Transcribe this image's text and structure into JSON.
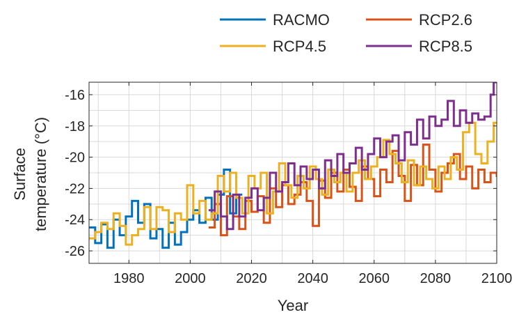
{
  "chart_data": {
    "type": "line",
    "step": true,
    "xlabel": "Year",
    "ylabel_lines": [
      "Surface",
      "temperature (°C)"
    ],
    "xlim": [
      1967,
      2100
    ],
    "ylim": [
      -26.8,
      -15.2
    ],
    "xticks": [
      1980,
      2000,
      2020,
      2040,
      2060,
      2080,
      2100
    ],
    "yticks": [
      -26,
      -24,
      -22,
      -20,
      -18,
      -16
    ],
    "grid": true,
    "legend": "top-right",
    "series": [
      {
        "name": "RACMO",
        "color": "#0072BD",
        "x": [
          1967,
          1969,
          1971,
          1973,
          1975,
          1977,
          1979,
          1981,
          1983,
          1985,
          1987,
          1989,
          1991,
          1993,
          1995,
          1997,
          1999,
          2001,
          2003,
          2005,
          2007,
          2009,
          2011,
          2013,
          2015
        ],
        "y": [
          -24.5,
          -25.5,
          -24.3,
          -25.8,
          -24.0,
          -25.0,
          -23.8,
          -22.8,
          -24.2,
          -23.0,
          -25.2,
          -24.6,
          -25.8,
          -24.2,
          -25.6,
          -24.8,
          -24.0,
          -23.4,
          -24.2,
          -22.6,
          -24.0,
          -22.4,
          -20.8,
          -23.6,
          -22.4
        ]
      },
      {
        "name": "RCP2.6",
        "color": "#D95319",
        "x": [
          2006,
          2008,
          2010,
          2012,
          2014,
          2016,
          2018,
          2020,
          2022,
          2024,
          2026,
          2028,
          2030,
          2032,
          2034,
          2036,
          2038,
          2040,
          2042,
          2044,
          2046,
          2048,
          2050,
          2052,
          2054,
          2056,
          2058,
          2060,
          2062,
          2064,
          2066,
          2068,
          2070,
          2072,
          2074,
          2076,
          2078,
          2080,
          2082,
          2084,
          2086,
          2088,
          2090,
          2092,
          2094,
          2096,
          2098,
          2100
        ],
        "y": [
          -24.5,
          -23.0,
          -25.0,
          -22.5,
          -23.8,
          -24.6,
          -22.8,
          -23.5,
          -22.5,
          -24.2,
          -22.0,
          -23.2,
          -21.8,
          -23.0,
          -22.4,
          -21.6,
          -22.8,
          -24.4,
          -21.5,
          -22.6,
          -21.0,
          -22.2,
          -20.8,
          -21.9,
          -22.8,
          -20.6,
          -21.4,
          -22.5,
          -20.8,
          -21.6,
          -19.6,
          -21.2,
          -22.8,
          -20.5,
          -21.8,
          -19.2,
          -20.8,
          -22.2,
          -21.0,
          -20.4,
          -19.8,
          -21.4,
          -20.6,
          -22.0,
          -20.8,
          -21.6,
          -21.0,
          -21.2
        ]
      },
      {
        "name": "RCP4.5",
        "color": "#EDB120",
        "x": [
          1967,
          1969,
          1971,
          1973,
          1975,
          1977,
          1979,
          1981,
          1983,
          1985,
          1987,
          1989,
          1991,
          1993,
          1995,
          1997,
          1999,
          2001,
          2003,
          2005,
          2007,
          2009,
          2011,
          2013,
          2015,
          2017,
          2019,
          2021,
          2023,
          2025,
          2027,
          2029,
          2031,
          2033,
          2035,
          2037,
          2039,
          2041,
          2043,
          2045,
          2047,
          2049,
          2051,
          2053,
          2055,
          2057,
          2059,
          2061,
          2063,
          2065,
          2067,
          2069,
          2071,
          2073,
          2075,
          2077,
          2079,
          2081,
          2083,
          2085,
          2087,
          2089,
          2091,
          2093,
          2095,
          2097,
          2099
        ],
        "y": [
          -25.2,
          -24.8,
          -24.2,
          -24.6,
          -23.6,
          -24.4,
          -25.6,
          -25.0,
          -24.6,
          -23.2,
          -24.6,
          -23.2,
          -23.4,
          -24.8,
          -23.6,
          -24.0,
          -21.8,
          -23.6,
          -22.8,
          -24.0,
          -23.6,
          -21.2,
          -22.2,
          -21.0,
          -22.6,
          -23.6,
          -21.2,
          -22.0,
          -21.0,
          -23.6,
          -22.2,
          -20.4,
          -21.8,
          -22.6,
          -21.2,
          -22.0,
          -20.6,
          -21.4,
          -22.4,
          -20.8,
          -21.6,
          -21.0,
          -22.2,
          -21.0,
          -20.2,
          -21.4,
          -20.6,
          -20.0,
          -18.9,
          -19.8,
          -20.4,
          -21.6,
          -20.2,
          -21.8,
          -20.6,
          -21.4,
          -22.0,
          -20.6,
          -21.4,
          -20.0,
          -20.8,
          -18.4,
          -17.8,
          -19.8,
          -20.4,
          -19.0,
          -17.8
        ]
      },
      {
        "name": "RCP8.5",
        "color": "#7E2F8E",
        "x": [
          2006,
          2008,
          2010,
          2012,
          2014,
          2016,
          2018,
          2020,
          2022,
          2024,
          2026,
          2028,
          2030,
          2032,
          2034,
          2036,
          2038,
          2040,
          2042,
          2044,
          2046,
          2048,
          2050,
          2052,
          2054,
          2056,
          2058,
          2060,
          2062,
          2064,
          2066,
          2068,
          2070,
          2072,
          2074,
          2076,
          2078,
          2080,
          2082,
          2084,
          2086,
          2088,
          2090,
          2092,
          2094,
          2096,
          2098,
          2099,
          2100
        ],
        "y": [
          -23.4,
          -22.2,
          -23.8,
          -24.6,
          -22.4,
          -23.8,
          -22.6,
          -22.0,
          -23.4,
          -22.6,
          -21.0,
          -22.2,
          -21.6,
          -20.4,
          -21.8,
          -20.6,
          -21.4,
          -20.8,
          -22.0,
          -20.2,
          -21.2,
          -19.8,
          -21.0,
          -20.4,
          -19.4,
          -20.8,
          -19.8,
          -18.8,
          -20.0,
          -19.0,
          -18.6,
          -20.2,
          -18.4,
          -19.2,
          -17.6,
          -18.8,
          -17.4,
          -18.0,
          -17.6,
          -16.4,
          -18.0,
          -17.0,
          -17.8,
          -17.2,
          -17.6,
          -17.4,
          -16.0,
          -15.2,
          -15.2
        ]
      }
    ]
  }
}
